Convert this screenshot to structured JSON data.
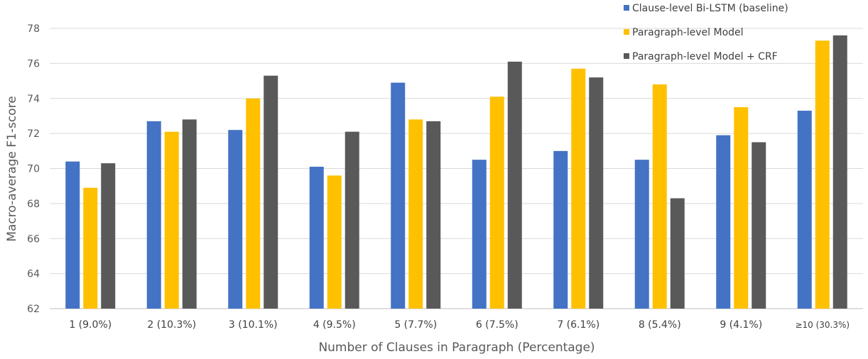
{
  "chart_data": {
    "type": "bar",
    "title": "",
    "xlabel": "Number of Clauses in Paragraph (Percentage)",
    "ylabel": "Macro-average F1-score",
    "ylim": [
      62,
      78
    ],
    "yticks": [
      62,
      64,
      66,
      68,
      70,
      72,
      74,
      76,
      78
    ],
    "grid": true,
    "legend_position": "top-right",
    "categories": [
      "1 (9.0%)",
      "2 (10.3%)",
      "3 (10.1%)",
      "4 (9.5%)",
      "5 (7.7%)",
      "6 (7.5%)",
      "7 (6.1%)",
      "8 (5.4%)",
      "9 (4.1%)",
      "≥10 (30.3%)"
    ],
    "series": [
      {
        "name": "Clause-level Bi-LSTM (baseline)",
        "color": "#4472C4",
        "values": [
          70.4,
          72.7,
          72.2,
          70.1,
          74.9,
          70.5,
          71.0,
          70.5,
          71.9,
          73.3
        ]
      },
      {
        "name": "Paragraph-level Model",
        "color": "#FFC000",
        "values": [
          68.9,
          72.1,
          74.0,
          69.6,
          72.8,
          74.1,
          75.7,
          74.8,
          73.5,
          77.3
        ]
      },
      {
        "name": "Paragraph-level Model + CRF",
        "color": "#595959",
        "values": [
          70.3,
          72.8,
          75.3,
          72.1,
          72.7,
          76.1,
          75.2,
          68.3,
          71.5,
          77.6
        ]
      }
    ]
  }
}
